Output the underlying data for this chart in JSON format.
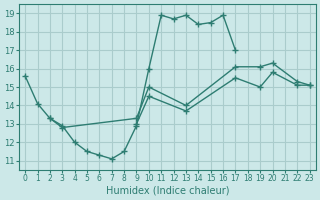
{
  "xlabel": "Humidex (Indice chaleur)",
  "bg_color": "#cce8e8",
  "grid_color": "#aacccc",
  "line_color": "#2e7d72",
  "xlim": [
    -0.5,
    23.5
  ],
  "ylim": [
    10.5,
    19.5
  ],
  "xticks": [
    0,
    1,
    2,
    3,
    4,
    5,
    6,
    7,
    8,
    9,
    10,
    11,
    12,
    13,
    14,
    15,
    16,
    17,
    18,
    19,
    20,
    21,
    22,
    23
  ],
  "yticks": [
    11,
    12,
    13,
    14,
    15,
    16,
    17,
    18,
    19
  ],
  "series": [
    {
      "x": [
        0,
        1,
        2,
        3,
        4,
        5,
        6,
        7,
        8,
        9,
        10,
        11,
        12,
        13,
        14,
        15,
        16,
        17
      ],
      "y": [
        15.6,
        14.1,
        13.3,
        12.9,
        12.0,
        11.5,
        11.3,
        11.1,
        11.5,
        12.9,
        16.0,
        18.9,
        18.7,
        18.9,
        18.4,
        18.5,
        18.9,
        17.0
      ]
    },
    {
      "x": [
        2,
        3,
        9,
        10,
        13,
        17,
        19,
        20,
        22,
        23
      ],
      "y": [
        13.3,
        12.8,
        13.3,
        15.0,
        14.0,
        16.1,
        16.1,
        16.3,
        15.3,
        15.1
      ]
    },
    {
      "x": [
        9,
        10,
        13,
        17,
        19,
        20,
        22,
        23
      ],
      "y": [
        13.0,
        14.5,
        13.7,
        15.5,
        15.0,
        15.8,
        15.1,
        15.1
      ]
    }
  ]
}
